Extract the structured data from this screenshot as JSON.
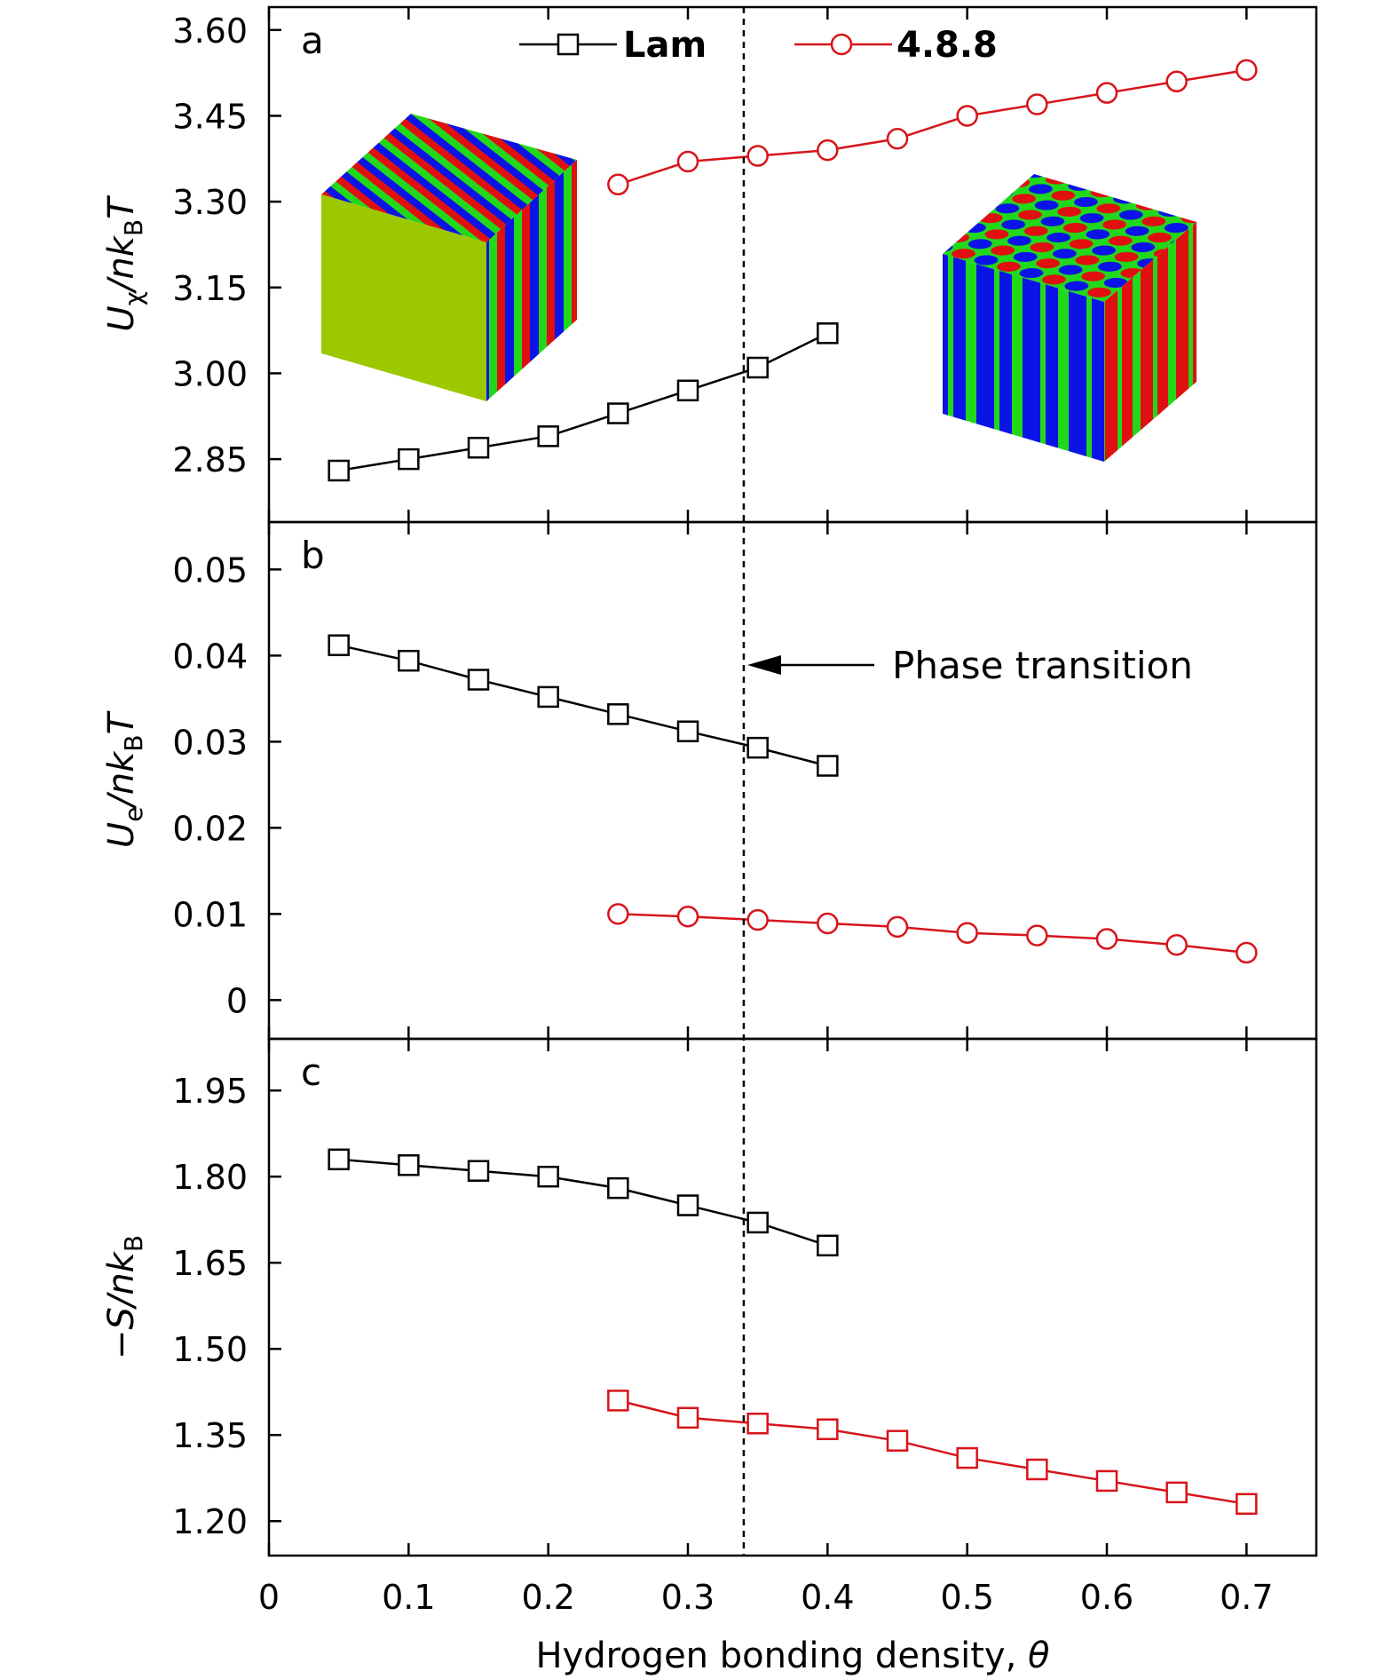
{
  "chart_data": [
    {
      "panel": "a",
      "type": "line",
      "ylabel": {
        "main": "U",
        "sub1": "χ",
        "mid": "/nk",
        "sub2": "B",
        "end": "T"
      },
      "ylim": [
        2.74,
        3.64
      ],
      "yticks": [
        "2.85",
        "3.00",
        "3.15",
        "3.30",
        "3.45",
        "3.60"
      ],
      "ytick_values": [
        2.85,
        3.0,
        3.15,
        3.3,
        3.45,
        3.6
      ],
      "series": [
        {
          "name": "Lam",
          "marker": "square",
          "color": "#000000",
          "x": [
            0.05,
            0.1,
            0.15,
            0.2,
            0.25,
            0.3,
            0.35,
            0.4
          ],
          "y": [
            2.83,
            2.85,
            2.87,
            2.89,
            2.93,
            2.97,
            3.01,
            3.07
          ]
        },
        {
          "name": "4.8.8",
          "marker": "circle",
          "color": "#d7141a",
          "x": [
            0.25,
            0.3,
            0.35,
            0.4,
            0.45,
            0.5,
            0.55,
            0.6,
            0.65,
            0.7
          ],
          "y": [
            3.33,
            3.37,
            3.38,
            3.39,
            3.41,
            3.45,
            3.47,
            3.49,
            3.51,
            3.53
          ]
        }
      ]
    },
    {
      "panel": "b",
      "type": "line",
      "ylabel": {
        "main": "U",
        "sub1": "e",
        "mid": "/nk",
        "sub2": "B",
        "end": "T"
      },
      "ylim": [
        -0.0045,
        0.0555
      ],
      "yticks": [
        "0",
        "0.01",
        "0.02",
        "0.03",
        "0.04",
        "0.05"
      ],
      "ytick_values": [
        0,
        0.01,
        0.02,
        0.03,
        0.04,
        0.05
      ],
      "annotation": "Phase transition",
      "series": [
        {
          "name": "Lam",
          "marker": "square",
          "color": "#000000",
          "x": [
            0.05,
            0.1,
            0.15,
            0.2,
            0.25,
            0.3,
            0.35,
            0.4
          ],
          "y": [
            0.0412,
            0.0394,
            0.0372,
            0.0352,
            0.0332,
            0.0312,
            0.0293,
            0.0272
          ]
        },
        {
          "name": "4.8.8",
          "marker": "circle",
          "color": "#d7141a",
          "x": [
            0.25,
            0.3,
            0.35,
            0.4,
            0.45,
            0.5,
            0.55,
            0.6,
            0.65,
            0.7
          ],
          "y": [
            0.01,
            0.0097,
            0.0093,
            0.0089,
            0.0085,
            0.0078,
            0.0075,
            0.0071,
            0.0064,
            0.0055
          ]
        }
      ]
    },
    {
      "panel": "c",
      "type": "line",
      "ylabel": {
        "main": "−S/nk",
        "sub1": "B",
        "mid": "",
        "sub2": "",
        "end": ""
      },
      "ylim": [
        1.14,
        2.04
      ],
      "yticks": [
        "1.20",
        "1.35",
        "1.50",
        "1.65",
        "1.80",
        "1.95"
      ],
      "ytick_values": [
        1.2,
        1.35,
        1.5,
        1.65,
        1.8,
        1.95
      ],
      "xlabel": "Hydrogen bonding density, θ",
      "xlim": [
        0,
        0.75
      ],
      "xticks": [
        "0",
        "0.1",
        "0.2",
        "0.3",
        "0.4",
        "0.5",
        "0.6",
        "0.7"
      ],
      "xtick_values": [
        0,
        0.1,
        0.2,
        0.3,
        0.4,
        0.5,
        0.6,
        0.7
      ],
      "series": [
        {
          "name": "Lam",
          "marker": "square",
          "color": "#000000",
          "x": [
            0.05,
            0.1,
            0.15,
            0.2,
            0.25,
            0.3,
            0.35,
            0.4
          ],
          "y": [
            1.83,
            1.82,
            1.81,
            1.8,
            1.78,
            1.75,
            1.72,
            1.68
          ]
        },
        {
          "name": "4.8.8",
          "marker": "square",
          "color": "#d7141a",
          "x": [
            0.25,
            0.3,
            0.35,
            0.4,
            0.45,
            0.5,
            0.55,
            0.6,
            0.65,
            0.7
          ],
          "y": [
            1.41,
            1.38,
            1.37,
            1.36,
            1.34,
            1.31,
            1.29,
            1.27,
            1.25,
            1.23
          ]
        }
      ]
    }
  ],
  "phase_transition_x": 0.34,
  "legend": [
    {
      "label": "Lam",
      "marker": "square",
      "color": "#000000"
    },
    {
      "label": "4.8.8",
      "marker": "circle",
      "color": "#d7141a"
    }
  ],
  "colors": {
    "green": "#9cc800",
    "blue": "#0a14e6",
    "red": "#e01010",
    "bright_green": "#22d81a"
  }
}
